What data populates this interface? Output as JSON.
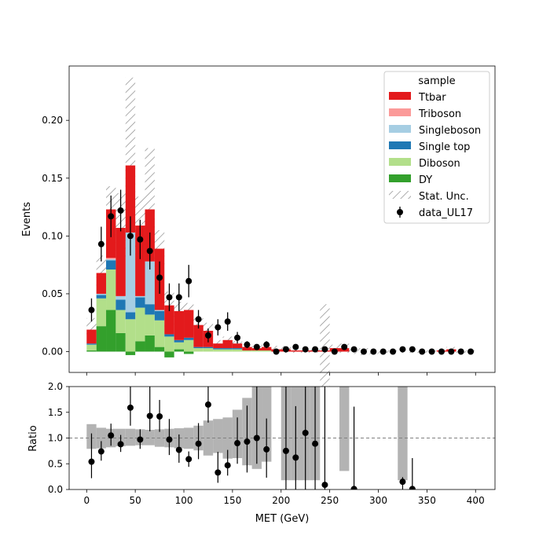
{
  "chart_data": [
    {
      "type": "bar",
      "subtype": "stacked-histogram-with-data-points",
      "xlabel": "",
      "ylabel": "Events",
      "xlim": [
        -18,
        420
      ],
      "ylim": [
        -0.018,
        0.247
      ],
      "yticks": [
        0.0,
        0.05,
        0.1,
        0.15,
        0.2
      ],
      "ytick_labels": [
        "0.00",
        "0.05",
        "0.10",
        "0.15",
        "0.20"
      ],
      "bin_edges": [
        0,
        10,
        20,
        30,
        40,
        50,
        60,
        70,
        80,
        90,
        100,
        110,
        120,
        130,
        140,
        150,
        160,
        170,
        180,
        190,
        200,
        210,
        220,
        230,
        240,
        250,
        260,
        270,
        280,
        290,
        300,
        310,
        320,
        330,
        340,
        350,
        360,
        370,
        380,
        390,
        400
      ],
      "legend": {
        "title": "sample",
        "placement": "upper right",
        "entries": [
          "Ttbar",
          "Triboson",
          "Singleboson",
          "Single top",
          "Diboson",
          "DY",
          "Stat. Unc.",
          "data_UL17"
        ]
      },
      "stack_order_bottom_to_top": [
        "DY",
        "Diboson",
        "Single top",
        "Singleboson",
        "Triboson",
        "Ttbar"
      ],
      "series": [
        {
          "name": "DY",
          "color": "#33a02c",
          "values": [
            0.001,
            0.022,
            0.036,
            0.016,
            -0.003,
            0.009,
            0.014,
            0.004,
            -0.005,
            0.002,
            -0.002,
            0,
            0,
            0,
            0,
            0,
            0,
            0,
            0,
            0,
            0,
            0,
            0,
            0,
            0,
            0,
            0,
            0,
            0,
            0,
            0,
            0,
            0,
            0,
            0,
            0,
            0,
            0,
            0,
            0
          ]
        },
        {
          "name": "Diboson",
          "color": "#b2df8a",
          "values": [
            0.005,
            0.024,
            0.035,
            0.02,
            0.028,
            0.029,
            0.018,
            0.023,
            0.013,
            0.006,
            0.01,
            0.003,
            0.003,
            0.002,
            0.002,
            0.002,
            0.001,
            0.001,
            0.001,
            0,
            0,
            0,
            0,
            0,
            0,
            0,
            0,
            0,
            0,
            0,
            0,
            0,
            0,
            0,
            0,
            0,
            0,
            0,
            0,
            0
          ]
        },
        {
          "name": "Single top",
          "color": "#1f78b4",
          "values": [
            0.001,
            0.003,
            0.008,
            0.009,
            0.006,
            0.009,
            0.009,
            0.008,
            0.002,
            0.002,
            0.002,
            0.001,
            0.001,
            0.001,
            0.001,
            0.001,
            0,
            0,
            0,
            0,
            0,
            0,
            0,
            0,
            0,
            0,
            0,
            0,
            0,
            0,
            0,
            0,
            0,
            0,
            0,
            0,
            0,
            0,
            0,
            0
          ]
        },
        {
          "name": "Singleboson",
          "color": "#a6cee3",
          "values": [
            0,
            0.001,
            0.001,
            0.003,
            0.069,
            0.001,
            0.037,
            0.001,
            0,
            0,
            0,
            0,
            0,
            0,
            0,
            0,
            0,
            0,
            0,
            0,
            0,
            0,
            0,
            0,
            0,
            0,
            0,
            0,
            0,
            0,
            0,
            0,
            0,
            0,
            0,
            0,
            0,
            0,
            0,
            0
          ]
        },
        {
          "name": "Triboson",
          "color": "#fb9a99",
          "values": [
            0,
            0,
            0.001,
            0,
            0,
            0,
            0,
            0,
            0,
            0,
            0,
            0,
            0,
            0,
            0,
            0,
            0,
            0,
            0,
            0,
            0,
            0,
            0,
            0,
            0,
            0,
            0,
            0,
            0,
            0,
            0,
            0,
            0,
            0,
            0,
            0,
            0,
            0,
            0,
            0
          ]
        },
        {
          "name": "Ttbar",
          "color": "#e31a1c",
          "values": [
            0.012,
            0.018,
            0.042,
            0.059,
            0.058,
            0.061,
            0.045,
            0.053,
            0.025,
            0.025,
            0.024,
            0.019,
            0.014,
            0.004,
            0.007,
            0.004,
            0.003,
            0.002,
            0.003,
            0.002,
            0.002,
            0.001,
            0.001,
            0.001,
            0.001,
            0.003,
            0.003,
            0,
            0,
            0,
            0,
            0,
            0,
            0,
            0,
            0,
            0.001,
            0.002,
            0,
            0
          ]
        }
      ],
      "stat_unc_halfwidth": [
        0.01,
        0.015,
        0.02,
        0.03,
        0.079,
        0.025,
        0.053,
        0.016,
        0.017,
        0.008,
        0.008,
        0.006,
        0.007,
        0.003,
        0.003,
        0.002,
        0.002,
        0.002,
        0.002,
        0.003,
        0.003,
        0.002,
        0.002,
        0.002,
        0.04,
        0.003,
        0.004,
        0.002,
        0.003,
        0.002,
        0.001,
        0.001,
        0.001,
        0.001,
        0.001,
        0.001,
        0.001,
        0.002,
        0.001,
        0.001
      ],
      "data": {
        "name": "data_UL17",
        "x": [
          5,
          15,
          25,
          35,
          45,
          55,
          65,
          75,
          85,
          95,
          105,
          115,
          125,
          135,
          145,
          155,
          165,
          175,
          185,
          195,
          205,
          215,
          225,
          235,
          245,
          255,
          265,
          275,
          285,
          295,
          305,
          315,
          325,
          335,
          345,
          355,
          365,
          375,
          385,
          395
        ],
        "y": [
          0.036,
          0.093,
          0.117,
          0.122,
          0.1,
          0.097,
          0.087,
          0.064,
          0.047,
          0.047,
          0.061,
          0.028,
          0.014,
          0.021,
          0.026,
          0.012,
          0.006,
          0.004,
          0.006,
          0.0,
          0.002,
          0.004,
          0.002,
          0.002,
          0.002,
          0.0,
          0.004,
          0.002,
          0.0,
          0.0,
          0.0,
          0.0,
          0.002,
          0.002,
          0.0,
          0.0,
          0.0,
          0.0,
          0.0,
          0.0
        ],
        "err": [
          0.01,
          0.015,
          0.018,
          0.018,
          0.017,
          0.017,
          0.016,
          0.014,
          0.012,
          0.012,
          0.014,
          0.008,
          0.006,
          0.007,
          0.008,
          0.005,
          0.003,
          0.002,
          0.003,
          0.0,
          0.0,
          0.0,
          0.0,
          0.0,
          0.0,
          0.0,
          0.0,
          0.0,
          0.0,
          0.0,
          0.0,
          0.0,
          0.0,
          0.0,
          0.0,
          0.0,
          0.0,
          0.0,
          0.0,
          0.0
        ]
      }
    },
    {
      "type": "scatter",
      "subtype": "ratio-panel",
      "xlabel": "MET (GeV)",
      "ylabel": "Ratio",
      "xlim": [
        -18,
        420
      ],
      "ylim": [
        0.0,
        2.0
      ],
      "xticks": [
        0,
        50,
        100,
        150,
        200,
        250,
        300,
        350,
        400
      ],
      "xtick_labels": [
        "0",
        "50",
        "100",
        "150",
        "200",
        "250",
        "300",
        "350",
        "400"
      ],
      "yticks": [
        0.0,
        0.5,
        1.0,
        1.5,
        2.0
      ],
      "ytick_labels": [
        "0.0",
        "0.5",
        "1.0",
        "1.5",
        "2.0"
      ],
      "reference_line": 1.0,
      "unc_band": [
        [
          5,
          0.79,
          1.27
        ],
        [
          15,
          0.8,
          1.2
        ],
        [
          25,
          0.82,
          1.18
        ],
        [
          35,
          0.84,
          1.18
        ],
        [
          45,
          0.85,
          1.18
        ],
        [
          55,
          0.86,
          1.17
        ],
        [
          65,
          0.86,
          1.16
        ],
        [
          75,
          0.83,
          1.17
        ],
        [
          85,
          0.82,
          1.18
        ],
        [
          95,
          0.8,
          1.19
        ],
        [
          105,
          0.79,
          1.2
        ],
        [
          115,
          0.76,
          1.24
        ],
        [
          125,
          0.66,
          1.34
        ],
        [
          135,
          0.71,
          1.37
        ],
        [
          145,
          0.6,
          1.4
        ],
        [
          155,
          0.61,
          1.55
        ],
        [
          165,
          0.47,
          1.78
        ],
        [
          175,
          0.4,
          2.0
        ],
        [
          185,
          0.54,
          2.0
        ],
        [
          205,
          0.18,
          2.0
        ],
        [
          215,
          0.18,
          2.0
        ],
        [
          225,
          0.18,
          2.0
        ],
        [
          235,
          0.18,
          2.0
        ],
        [
          265,
          0.36,
          2.0
        ],
        [
          325,
          0.18,
          2.0
        ]
      ],
      "points": {
        "x": [
          5,
          15,
          25,
          35,
          45,
          55,
          65,
          75,
          85,
          95,
          105,
          115,
          125,
          135,
          145,
          155,
          165,
          175,
          185,
          205,
          215,
          225,
          235,
          245,
          275,
          325,
          335
        ],
        "y": [
          0.54,
          0.74,
          1.05,
          0.88,
          1.59,
          0.97,
          1.43,
          1.42,
          0.97,
          0.77,
          0.59,
          0.89,
          1.65,
          0.33,
          0.47,
          0.9,
          0.93,
          1.0,
          0.78,
          0.75,
          0.62,
          1.1,
          0.89,
          0.09,
          0.01,
          0.15,
          0.01
        ],
        "err_low": [
          0.32,
          0.18,
          0.2,
          0.15,
          0.35,
          0.18,
          0.3,
          0.3,
          0.3,
          0.25,
          0.15,
          0.3,
          0.35,
          0.2,
          0.2,
          0.4,
          0.6,
          0.5,
          0.55,
          0.75,
          0.62,
          1.1,
          0.89,
          0.09,
          0.01,
          0.15,
          0.01
        ],
        "err_high": [
          0.55,
          0.2,
          0.23,
          0.18,
          0.41,
          0.2,
          0.6,
          0.32,
          0.4,
          0.3,
          0.15,
          0.4,
          0.35,
          0.4,
          0.3,
          0.5,
          0.7,
          1.0,
          0.6,
          1.25,
          1.0,
          0.9,
          1.11,
          1.91,
          1.6,
          0.09,
          0.6
        ]
      }
    }
  ]
}
